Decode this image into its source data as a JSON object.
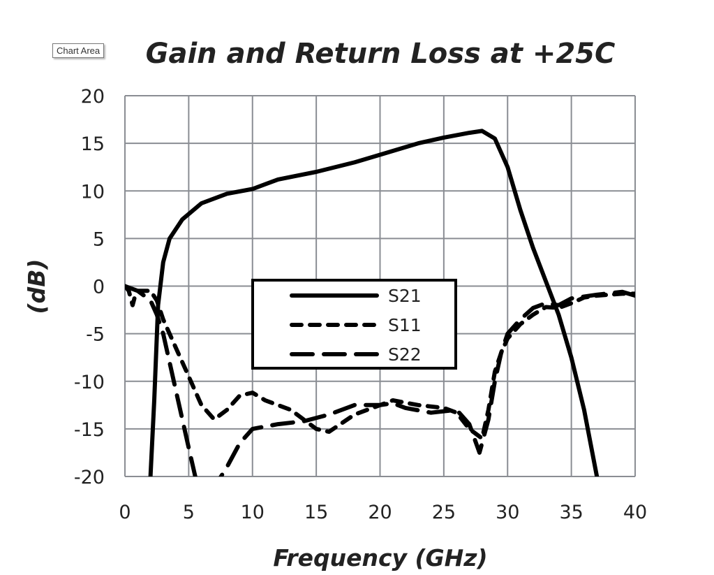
{
  "tooltip": "Chart Area",
  "chart_data": {
    "type": "line",
    "title": "Gain and Return Loss at +25C",
    "xlabel": "Frequency (GHz)",
    "ylabel": "(dB)",
    "xlim": [
      0,
      40
    ],
    "ylim": [
      -20,
      20
    ],
    "xticks": [
      0,
      5,
      10,
      15,
      20,
      25,
      30,
      35,
      40
    ],
    "yticks": [
      20,
      15,
      10,
      5,
      0,
      -5,
      -10,
      -15,
      -20
    ],
    "grid": true,
    "legend_position": "center",
    "series": [
      {
        "name": "S21",
        "style": "solid",
        "points": [
          [
            2,
            -20
          ],
          [
            2.3,
            -12
          ],
          [
            2.6,
            -2
          ],
          [
            3,
            2.5
          ],
          [
            3.5,
            5
          ],
          [
            4.5,
            7
          ],
          [
            6,
            8.7
          ],
          [
            8,
            9.7
          ],
          [
            10,
            10.2
          ],
          [
            12,
            11.2
          ],
          [
            15,
            12
          ],
          [
            18,
            13
          ],
          [
            20,
            13.8
          ],
          [
            23,
            15
          ],
          [
            25,
            15.6
          ],
          [
            27,
            16.1
          ],
          [
            28,
            16.3
          ],
          [
            29,
            15.5
          ],
          [
            30,
            12.5
          ],
          [
            31,
            8
          ],
          [
            32,
            4
          ],
          [
            33,
            0.5
          ],
          [
            34,
            -3
          ],
          [
            35,
            -7.5
          ],
          [
            36,
            -13
          ],
          [
            37,
            -20
          ]
        ]
      },
      {
        "name": "S11",
        "style": "short-dash",
        "points": [
          [
            0,
            0
          ],
          [
            0.3,
            -0.5
          ],
          [
            0.6,
            -2
          ],
          [
            0.8,
            -1
          ],
          [
            1,
            -0.5
          ],
          [
            2,
            -0.5
          ],
          [
            2.5,
            -1.5
          ],
          [
            3,
            -3.5
          ],
          [
            4,
            -6.5
          ],
          [
            5,
            -9.5
          ],
          [
            6,
            -12.5
          ],
          [
            7,
            -14
          ],
          [
            8,
            -13
          ],
          [
            9,
            -11.5
          ],
          [
            10,
            -11.2
          ],
          [
            11,
            -12
          ],
          [
            13,
            -13
          ],
          [
            15,
            -15
          ],
          [
            16,
            -15.3
          ],
          [
            18,
            -13.5
          ],
          [
            20,
            -12.5
          ],
          [
            21,
            -12
          ],
          [
            23,
            -12.5
          ],
          [
            25,
            -12.8
          ],
          [
            26,
            -13.3
          ],
          [
            27,
            -15
          ],
          [
            28,
            -16
          ],
          [
            28.5,
            -13
          ],
          [
            29,
            -9
          ],
          [
            29.5,
            -7
          ],
          [
            30,
            -5.5
          ],
          [
            31,
            -4
          ],
          [
            32,
            -3
          ],
          [
            33,
            -2.2
          ],
          [
            34,
            -2.3
          ],
          [
            35,
            -1.8
          ],
          [
            36,
            -1.2
          ],
          [
            37,
            -1
          ],
          [
            38,
            -0.9
          ],
          [
            39,
            -0.8
          ],
          [
            40,
            -0.8
          ]
        ]
      },
      {
        "name": "S22",
        "style": "long-dash",
        "points": [
          [
            0,
            0
          ],
          [
            1,
            -0.5
          ],
          [
            2,
            -1.5
          ],
          [
            2.5,
            -3
          ],
          [
            3,
            -5
          ],
          [
            4,
            -11
          ],
          [
            5,
            -17
          ],
          [
            5.6,
            -20.5
          ],
          [
            7.3,
            -20.5
          ],
          [
            8,
            -19
          ],
          [
            9,
            -16.5
          ],
          [
            10,
            -15
          ],
          [
            12,
            -14.5
          ],
          [
            14,
            -14.2
          ],
          [
            16,
            -13.5
          ],
          [
            18,
            -12.5
          ],
          [
            20,
            -12.5
          ],
          [
            21,
            -12.3
          ],
          [
            22,
            -12.8
          ],
          [
            24,
            -13.3
          ],
          [
            26,
            -13
          ],
          [
            27,
            -14.5
          ],
          [
            27.8,
            -17.5
          ],
          [
            28.5,
            -14
          ],
          [
            29,
            -10
          ],
          [
            29.5,
            -7
          ],
          [
            30,
            -5
          ],
          [
            31,
            -3.5
          ],
          [
            32,
            -2.3
          ],
          [
            33,
            -1.8
          ],
          [
            34,
            -2
          ],
          [
            35,
            -1.3
          ],
          [
            37,
            -0.9
          ],
          [
            39,
            -0.6
          ],
          [
            40,
            -1
          ]
        ]
      }
    ]
  }
}
